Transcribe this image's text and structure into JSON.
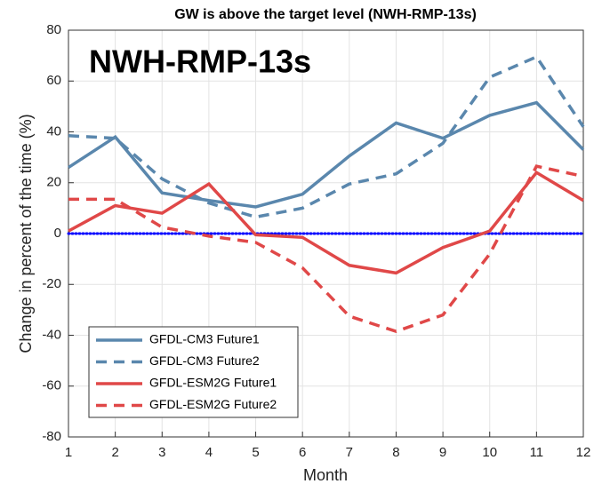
{
  "chart_data": {
    "type": "line",
    "title": "GW is above the target level (NWH-RMP-13s)",
    "annotation": "NWH-RMP-13s",
    "x_label": "Month",
    "y_label": "Change in percent of the time (%)",
    "x": [
      1,
      2,
      3,
      4,
      5,
      6,
      7,
      8,
      9,
      10,
      11,
      12
    ],
    "series": [
      {
        "name": "GFDL-CM3 Future1",
        "color": "#5a87ad",
        "linestyle": "solid",
        "values": [
          26,
          38,
          16,
          13,
          10.5,
          15.5,
          30.5,
          43.5,
          37.5,
          46.5,
          51.5,
          33
        ]
      },
      {
        "name": "GFDL-CM3 Future2",
        "color": "#5a87ad",
        "linestyle": "dashed",
        "values": [
          38.5,
          37.5,
          21.5,
          12,
          6.5,
          10,
          19.5,
          23.5,
          35.5,
          61.5,
          69.5,
          42
        ]
      },
      {
        "name": "GFDL-ESM2G Future1",
        "color": "#e04848",
        "linestyle": "solid",
        "values": [
          1,
          11,
          8,
          19.5,
          -0.5,
          -1.5,
          -12.5,
          -15.5,
          -5.5,
          1,
          24,
          13
        ]
      },
      {
        "name": "GFDL-ESM2G Future2",
        "color": "#e04848",
        "linestyle": "dashed",
        "values": [
          13.5,
          13.5,
          2.5,
          -1,
          -3.5,
          -13.5,
          -32.5,
          -38.5,
          -32,
          -8,
          26.5,
          22.5
        ]
      }
    ],
    "reference_line": {
      "value": 0,
      "color": "#0000ff"
    },
    "xlim": [
      1,
      12
    ],
    "xticks": [
      1,
      2,
      3,
      4,
      5,
      6,
      7,
      8,
      9,
      10,
      11,
      12
    ],
    "ylim": [
      -80,
      80
    ],
    "yticks": [
      -80,
      -60,
      -40,
      -20,
      0,
      20,
      40,
      60,
      80
    ],
    "grid": true,
    "legend": "lower-left"
  }
}
